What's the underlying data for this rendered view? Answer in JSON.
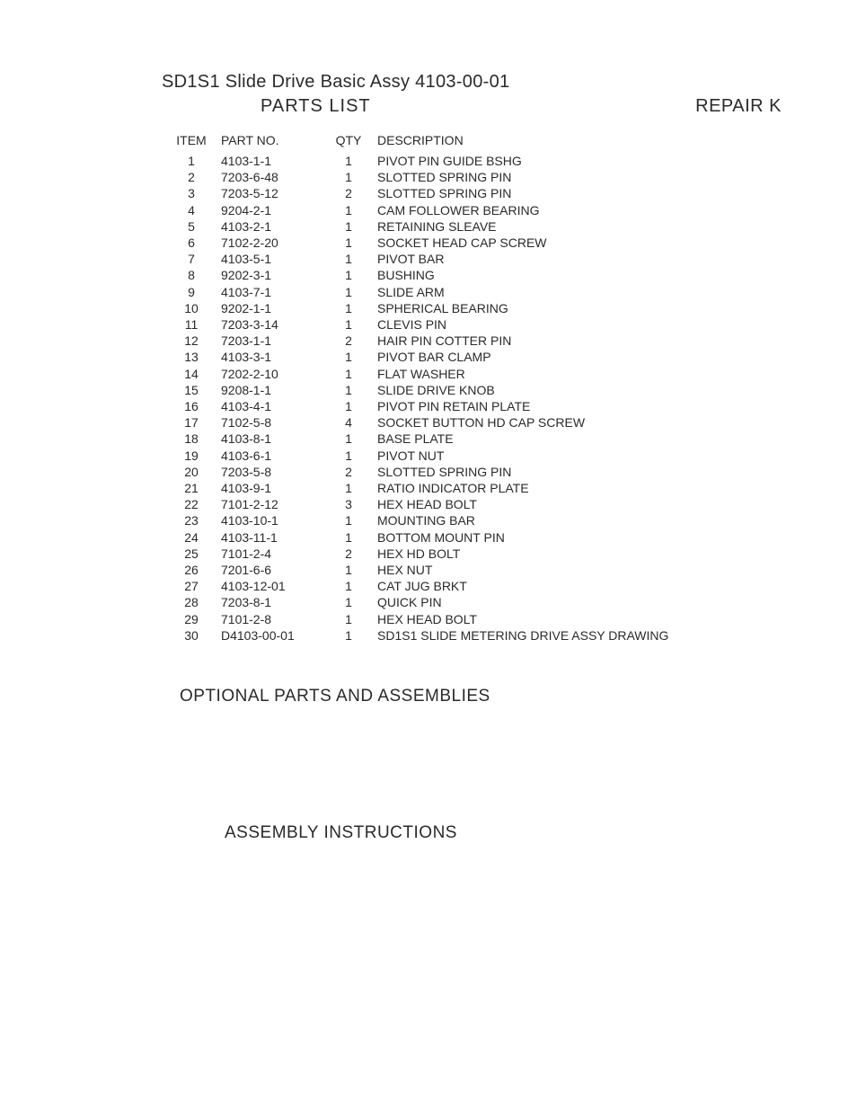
{
  "title": "SD1S1 Slide Drive Basic Assy  4103-00-01",
  "subtitle": "PARTS LIST",
  "repair_label": "REPAIR K",
  "columns": {
    "item": "ITEM",
    "partno": "PART NO.",
    "qty": "QTY",
    "desc": "DESCRIPTION"
  },
  "rows": [
    {
      "item": "1",
      "partno": "4103-1-1",
      "qty": "1",
      "desc": "PIVOT PIN GUIDE BSHG"
    },
    {
      "item": "2",
      "partno": "7203-6-48",
      "qty": "1",
      "desc": "SLOTTED SPRING PIN"
    },
    {
      "item": "3",
      "partno": "7203-5-12",
      "qty": "2",
      "desc": "SLOTTED SPRING PIN"
    },
    {
      "item": "4",
      "partno": "9204-2-1",
      "qty": "1",
      "desc": "CAM FOLLOWER BEARING"
    },
    {
      "item": "5",
      "partno": "4103-2-1",
      "qty": "1",
      "desc": "RETAINING SLEAVE"
    },
    {
      "item": "6",
      "partno": "7102-2-20",
      "qty": "1",
      "desc": "SOCKET HEAD CAP SCREW"
    },
    {
      "item": "7",
      "partno": "4103-5-1",
      "qty": "1",
      "desc": "PIVOT BAR"
    },
    {
      "item": "8",
      "partno": "9202-3-1",
      "qty": "1",
      "desc": "BUSHING"
    },
    {
      "item": "9",
      "partno": "4103-7-1",
      "qty": "1",
      "desc": "SLIDE ARM"
    },
    {
      "item": "10",
      "partno": "9202-1-1",
      "qty": "1",
      "desc": "SPHERICAL BEARING"
    },
    {
      "item": "11",
      "partno": "7203-3-14",
      "qty": "1",
      "desc": "CLEVIS PIN"
    },
    {
      "item": "12",
      "partno": "7203-1-1",
      "qty": "2",
      "desc": "HAIR PIN COTTER PIN"
    },
    {
      "item": "13",
      "partno": "4103-3-1",
      "qty": "1",
      "desc": "PIVOT BAR CLAMP"
    },
    {
      "item": "14",
      "partno": "7202-2-10",
      "qty": "1",
      "desc": "FLAT WASHER"
    },
    {
      "item": "15",
      "partno": "9208-1-1",
      "qty": "1",
      "desc": "SLIDE DRIVE KNOB"
    },
    {
      "item": "16",
      "partno": "4103-4-1",
      "qty": "1",
      "desc": "PIVOT PIN RETAIN PLATE"
    },
    {
      "item": "17",
      "partno": "7102-5-8",
      "qty": "4",
      "desc": "SOCKET BUTTON HD CAP SCREW"
    },
    {
      "item": "18",
      "partno": "4103-8-1",
      "qty": "1",
      "desc": "BASE PLATE"
    },
    {
      "item": "19",
      "partno": "4103-6-1",
      "qty": "1",
      "desc": "PIVOT NUT"
    },
    {
      "item": "20",
      "partno": "7203-5-8",
      "qty": "2",
      "desc": "SLOTTED SPRING PIN"
    },
    {
      "item": "21",
      "partno": "4103-9-1",
      "qty": "1",
      "desc": "RATIO INDICATOR PLATE"
    },
    {
      "item": "22",
      "partno": "7101-2-12",
      "qty": "3",
      "desc": "HEX HEAD BOLT"
    },
    {
      "item": "23",
      "partno": "4103-10-1",
      "qty": "1",
      "desc": "MOUNTING BAR"
    },
    {
      "item": "24",
      "partno": "4103-11-1",
      "qty": "1",
      "desc": "BOTTOM MOUNT PIN"
    },
    {
      "item": "25",
      "partno": "7101-2-4",
      "qty": "2",
      "desc": "HEX HD BOLT"
    },
    {
      "item": "26",
      "partno": "7201-6-6",
      "qty": "1",
      "desc": "HEX NUT"
    },
    {
      "item": "27",
      "partno": "4103-12-01",
      "qty": "1",
      "desc": "CAT JUG BRKT"
    },
    {
      "item": "28",
      "partno": "7203-8-1",
      "qty": "1",
      "desc": "QUICK PIN"
    },
    {
      "item": "29",
      "partno": "7101-2-8",
      "qty": "1",
      "desc": "HEX HEAD BOLT"
    },
    {
      "item": "30",
      "partno": "D4103-00-01",
      "qty": "1",
      "desc": "SD1S1 SLIDE METERING DRIVE ASSY DRAWING"
    }
  ],
  "optional_heading": "OPTIONAL PARTS AND ASSEMBLIES",
  "assembly_heading": "ASSEMBLY INSTRUCTIONS",
  "style": {
    "background": "#ffffff",
    "text_color": "#2a2a2a",
    "title_fontsize": 20,
    "body_fontsize": 14,
    "row_lineheight": 18.2
  }
}
